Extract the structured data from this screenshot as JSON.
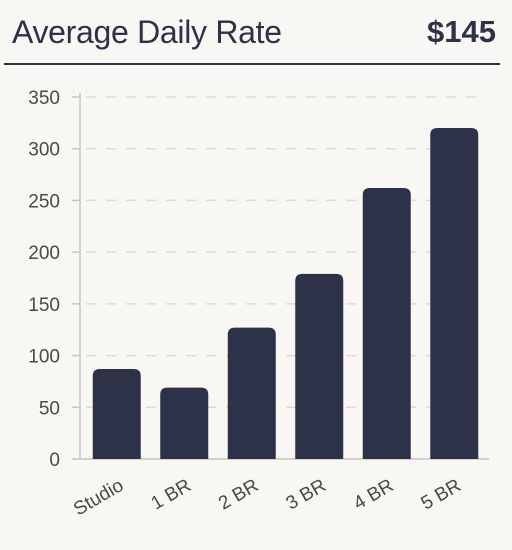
{
  "header": {
    "title": "Average Daily Rate",
    "value": "$145"
  },
  "colors": {
    "bar": "#2d3248",
    "background": "#f9f7f3",
    "text": "#4a4a4a",
    "grid": "#dedbd5"
  },
  "chart_data": {
    "type": "bar",
    "title": "Average Daily Rate",
    "xlabel": "",
    "ylabel": "",
    "categories": [
      "Studio",
      "1 BR",
      "2 BR",
      "3 BR",
      "4 BR",
      "5 BR"
    ],
    "values": [
      87,
      69,
      127,
      179,
      262,
      320
    ],
    "ylim": [
      0,
      350
    ],
    "yticks": [
      0,
      50,
      100,
      150,
      200,
      250,
      300,
      350
    ],
    "grid": true,
    "legend": "none"
  }
}
